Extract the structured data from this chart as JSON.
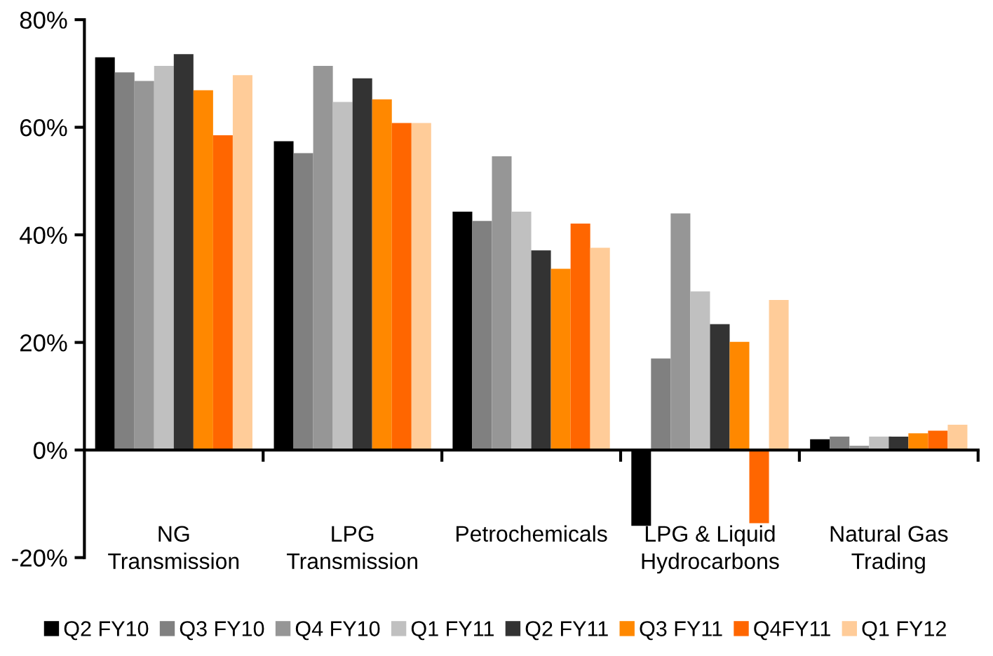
{
  "chart_data": {
    "type": "bar",
    "categories": [
      "NG\nTransmission",
      "LPG\nTransmission",
      "Petrochemicals",
      "LPG & Liquid\nHydrocarbons",
      "Natural Gas\nTrading"
    ],
    "series": [
      {
        "name": "Q2 FY10",
        "color": "#000000",
        "values": [
          73.0,
          57.4,
          44.3,
          -14.1,
          2.0
        ]
      },
      {
        "name": "Q3 FY10",
        "color": "#808080",
        "values": [
          70.2,
          55.2,
          42.6,
          17.0,
          2.5
        ]
      },
      {
        "name": "Q4 FY10",
        "color": "#969696",
        "values": [
          68.6,
          71.4,
          54.6,
          44.0,
          0.8
        ]
      },
      {
        "name": "Q1 FY11",
        "color": "#c0c0c0",
        "values": [
          71.4,
          64.7,
          44.3,
          29.5,
          2.5
        ]
      },
      {
        "name": "Q2 FY11",
        "color": "#333333",
        "values": [
          73.6,
          69.1,
          37.1,
          23.4,
          2.5
        ]
      },
      {
        "name": "Q3 FY11",
        "color": "#ff8800",
        "values": [
          66.9,
          65.2,
          33.7,
          20.1,
          3.1
        ]
      },
      {
        "name": "Q4FY11",
        "color": "#ff6600",
        "values": [
          58.5,
          60.8,
          42.1,
          -13.6,
          3.6
        ]
      },
      {
        "name": "Q1 FY12",
        "color": "#ffcc99",
        "values": [
          69.7,
          60.8,
          37.6,
          27.9,
          4.7
        ]
      }
    ],
    "ylim": [
      -20,
      80
    ],
    "yticks": [
      {
        "value": -20,
        "label": "-20%"
      },
      {
        "value": 0,
        "label": "0%"
      },
      {
        "value": 20,
        "label": "20%"
      },
      {
        "value": 40,
        "label": "40%"
      },
      {
        "value": 60,
        "label": "60%"
      },
      {
        "value": 80,
        "label": "80%"
      }
    ],
    "legend": "bottom"
  }
}
